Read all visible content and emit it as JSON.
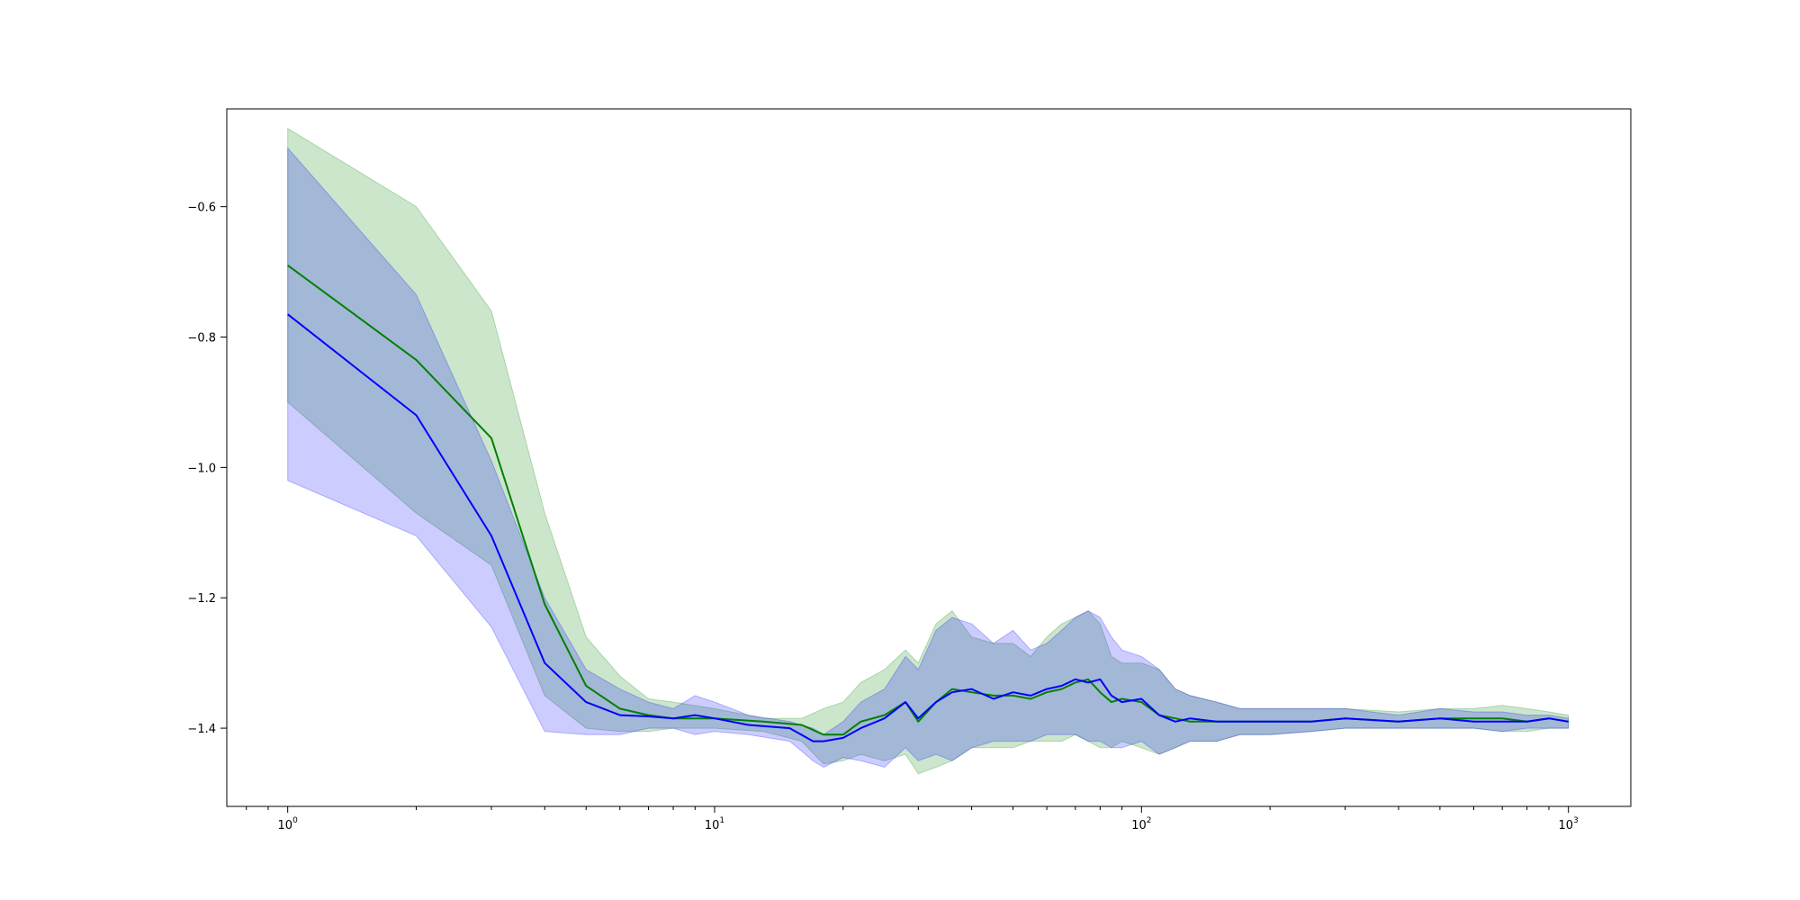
{
  "chart_data": {
    "type": "line",
    "title": "",
    "xlabel": "",
    "ylabel": "",
    "xscale": "log",
    "xlim": [
      0.72,
      1400
    ],
    "ylim": [
      -1.52,
      -0.45
    ],
    "grid": false,
    "legend": "none",
    "x_ticks": [
      {
        "value": 1,
        "base": "10",
        "exp": "0"
      },
      {
        "value": 10,
        "base": "10",
        "exp": "1"
      },
      {
        "value": 100,
        "base": "10",
        "exp": "2"
      },
      {
        "value": 1000,
        "base": "10",
        "exp": "3"
      }
    ],
    "y_ticks": [
      {
        "value": -0.6,
        "label": "−0.6"
      },
      {
        "value": -0.8,
        "label": "−0.8"
      },
      {
        "value": -1.0,
        "label": "−1.0"
      },
      {
        "value": -1.2,
        "label": "−1.2"
      },
      {
        "value": -1.4,
        "label": "−1.4"
      }
    ],
    "series": [
      {
        "color": "#008000",
        "band_color": "#008000",
        "x": [
          1,
          2,
          3,
          4,
          5,
          6,
          7,
          8,
          10,
          13,
          16,
          18,
          20,
          22,
          25,
          28,
          30,
          33,
          36,
          40,
          45,
          50,
          55,
          60,
          65,
          70,
          75,
          80,
          85,
          90,
          100,
          110,
          120,
          130,
          150,
          170,
          200,
          250,
          300,
          400,
          500,
          600,
          700,
          800,
          900,
          1000
        ],
        "mean": [
          -0.69,
          -0.835,
          -0.955,
          -1.21,
          -1.335,
          -1.37,
          -1.38,
          -1.385,
          -1.385,
          -1.39,
          -1.395,
          -1.41,
          -1.41,
          -1.39,
          -1.38,
          -1.36,
          -1.39,
          -1.36,
          -1.34,
          -1.345,
          -1.35,
          -1.35,
          -1.355,
          -1.345,
          -1.34,
          -1.33,
          -1.325,
          -1.345,
          -1.36,
          -1.355,
          -1.36,
          -1.38,
          -1.385,
          -1.39,
          -1.39,
          -1.39,
          -1.39,
          -1.39,
          -1.385,
          -1.39,
          -1.385,
          -1.385,
          -1.385,
          -1.39,
          -1.385,
          -1.39
        ],
        "upper": [
          -0.48,
          -0.6,
          -0.76,
          -1.07,
          -1.26,
          -1.32,
          -1.355,
          -1.36,
          -1.37,
          -1.385,
          -1.385,
          -1.37,
          -1.36,
          -1.33,
          -1.31,
          -1.28,
          -1.3,
          -1.24,
          -1.22,
          -1.26,
          -1.27,
          -1.27,
          -1.29,
          -1.26,
          -1.24,
          -1.23,
          -1.22,
          -1.24,
          -1.29,
          -1.3,
          -1.3,
          -1.31,
          -1.34,
          -1.35,
          -1.36,
          -1.37,
          -1.37,
          -1.37,
          -1.37,
          -1.375,
          -1.37,
          -1.37,
          -1.365,
          -1.37,
          -1.375,
          -1.38
        ],
        "lower": [
          -0.9,
          -1.07,
          -1.15,
          -1.35,
          -1.4,
          -1.405,
          -1.405,
          -1.4,
          -1.4,
          -1.405,
          -1.42,
          -1.455,
          -1.45,
          -1.44,
          -1.45,
          -1.44,
          -1.47,
          -1.46,
          -1.45,
          -1.43,
          -1.43,
          -1.43,
          -1.42,
          -1.42,
          -1.42,
          -1.41,
          -1.42,
          -1.43,
          -1.43,
          -1.42,
          -1.43,
          -1.44,
          -1.43,
          -1.42,
          -1.42,
          -1.41,
          -1.41,
          -1.405,
          -1.4,
          -1.4,
          -1.4,
          -1.4,
          -1.405,
          -1.405,
          -1.4,
          -1.4
        ]
      },
      {
        "color": "#0000ff",
        "band_color": "#0000ff",
        "x": [
          1,
          2,
          3,
          4,
          5,
          6,
          7,
          8,
          9,
          10,
          12,
          15,
          17,
          18,
          20,
          22,
          25,
          28,
          30,
          33,
          36,
          40,
          45,
          50,
          55,
          60,
          65,
          70,
          75,
          80,
          85,
          90,
          100,
          110,
          120,
          130,
          150,
          170,
          200,
          250,
          300,
          400,
          500,
          600,
          700,
          800,
          900,
          1000
        ],
        "mean": [
          -0.765,
          -0.92,
          -1.105,
          -1.3,
          -1.36,
          -1.38,
          -1.382,
          -1.385,
          -1.38,
          -1.385,
          -1.395,
          -1.4,
          -1.42,
          -1.42,
          -1.415,
          -1.4,
          -1.385,
          -1.36,
          -1.385,
          -1.36,
          -1.345,
          -1.34,
          -1.355,
          -1.345,
          -1.35,
          -1.34,
          -1.335,
          -1.325,
          -1.33,
          -1.325,
          -1.35,
          -1.36,
          -1.355,
          -1.38,
          -1.39,
          -1.385,
          -1.39,
          -1.39,
          -1.39,
          -1.39,
          -1.385,
          -1.39,
          -1.385,
          -1.39,
          -1.39,
          -1.39,
          -1.385,
          -1.39
        ],
        "upper": [
          -0.51,
          -0.735,
          -0.99,
          -1.2,
          -1.31,
          -1.34,
          -1.36,
          -1.37,
          -1.35,
          -1.36,
          -1.38,
          -1.39,
          -1.4,
          -1.41,
          -1.39,
          -1.36,
          -1.34,
          -1.29,
          -1.31,
          -1.25,
          -1.23,
          -1.24,
          -1.27,
          -1.25,
          -1.28,
          -1.27,
          -1.25,
          -1.23,
          -1.22,
          -1.23,
          -1.26,
          -1.28,
          -1.29,
          -1.31,
          -1.34,
          -1.35,
          -1.36,
          -1.37,
          -1.37,
          -1.37,
          -1.37,
          -1.38,
          -1.37,
          -1.375,
          -1.375,
          -1.38,
          -1.38,
          -1.385
        ],
        "lower": [
          -1.02,
          -1.105,
          -1.245,
          -1.405,
          -1.41,
          -1.41,
          -1.4,
          -1.4,
          -1.41,
          -1.405,
          -1.41,
          -1.42,
          -1.45,
          -1.46,
          -1.445,
          -1.45,
          -1.46,
          -1.43,
          -1.45,
          -1.44,
          -1.45,
          -1.43,
          -1.42,
          -1.42,
          -1.42,
          -1.41,
          -1.41,
          -1.41,
          -1.42,
          -1.42,
          -1.43,
          -1.43,
          -1.42,
          -1.44,
          -1.43,
          -1.42,
          -1.42,
          -1.41,
          -1.41,
          -1.405,
          -1.4,
          -1.4,
          -1.4,
          -1.4,
          -1.405,
          -1.4,
          -1.4,
          -1.4
        ]
      }
    ]
  }
}
